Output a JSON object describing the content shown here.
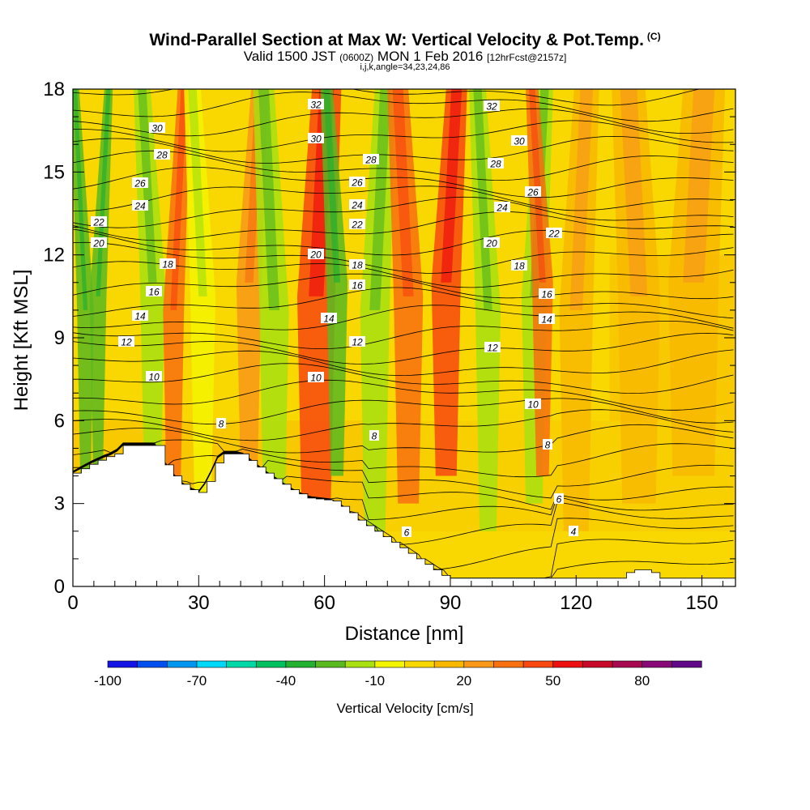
{
  "header": {
    "title": "Wind-Parallel Section at Max W: Vertical Velocity & Pot.Temp.",
    "title_unit": "(C)",
    "valid_prefix": "Valid 1500 JST",
    "valid_zulu": "(0600Z)",
    "valid_date": "MON 1 Feb 2016",
    "forecast": "[12hrFcst@2157z]",
    "indices": "i,j,k,angle=34,23,24,86"
  },
  "chart_data": {
    "type": "heatmap",
    "xlabel": "Distance [nm]",
    "ylabel": "Height [Kft MSL]",
    "xlim": [
      0,
      158
    ],
    "ylim": [
      0,
      18
    ],
    "x_ticks": [
      0,
      30,
      60,
      90,
      120,
      150
    ],
    "x_tick_labels": [
      "0",
      "30",
      "60",
      "90",
      "120",
      "150"
    ],
    "y_ticks": [
      0,
      3,
      6,
      9,
      12,
      15,
      18
    ],
    "y_tick_labels": [
      "0",
      "3",
      "6",
      "9",
      "12",
      "15",
      "18"
    ],
    "colorbar": {
      "title": "Vertical Velocity [cm/s]",
      "tick_values": [
        -100,
        -70,
        -40,
        -10,
        20,
        50,
        80
      ],
      "tick_labels": [
        "-100",
        "-70",
        "-40",
        "-10",
        "20",
        "50",
        "80"
      ],
      "colors": [
        "#1414e6",
        "#0050f0",
        "#0096f0",
        "#00d8f8",
        "#00d8a8",
        "#00c060",
        "#24b030",
        "#5ab820",
        "#a8e010",
        "#f5f500",
        "#f8d800",
        "#f8b800",
        "#f89818",
        "#f87010",
        "#f84810",
        "#ee1010",
        "#c80828",
        "#a80850",
        "#880878",
        "#600888"
      ]
    },
    "potential_temperature_contours": {
      "name": "Pot.Temp.",
      "labels": [
        "4",
        "6",
        "8",
        "10",
        "12",
        "14",
        "16",
        "18",
        "20",
        "22",
        "24",
        "26",
        "28",
        "30",
        "32"
      ]
    },
    "vertical_velocity_bands": [
      {
        "x": 3,
        "w": 2,
        "value": -25
      },
      {
        "x": 6,
        "w": 2,
        "value": -30
      },
      {
        "x": 19,
        "w": 4,
        "value": -20
      },
      {
        "x": 24,
        "w": 3,
        "value": 30
      },
      {
        "x": 31,
        "w": 4,
        "value": -10
      },
      {
        "x": 42,
        "w": 4,
        "value": 20
      },
      {
        "x": 48,
        "w": 5,
        "value": -20
      },
      {
        "x": 58,
        "w": 7,
        "value": 40
      },
      {
        "x": 63,
        "w": 3,
        "value": -30
      },
      {
        "x": 72,
        "w": 5,
        "value": -20
      },
      {
        "x": 80,
        "w": 5,
        "value": 30
      },
      {
        "x": 89,
        "w": 5,
        "value": 40
      },
      {
        "x": 99,
        "w": 4,
        "value": -15
      },
      {
        "x": 110,
        "w": 4,
        "value": -20
      },
      {
        "x": 112,
        "w": 3,
        "value": 30
      },
      {
        "x": 120,
        "w": 6,
        "value": 15
      },
      {
        "x": 135,
        "w": 8,
        "value": 10
      },
      {
        "x": 148,
        "w": 10,
        "value": 10
      }
    ],
    "terrain_profile": {
      "x": [
        0,
        5,
        8,
        10,
        12,
        20,
        21,
        23,
        25,
        28,
        30,
        32,
        35,
        40,
        45,
        52,
        56,
        62,
        65,
        68,
        72,
        76,
        80,
        84,
        88,
        90,
        95,
        120,
        130,
        133,
        137,
        140,
        158
      ],
      "height_kft": [
        4.1,
        4.5,
        4.7,
        4.8,
        5.1,
        5.1,
        4.6,
        4.2,
        3.8,
        3.5,
        3.4,
        3.8,
        4.8,
        4.8,
        4.2,
        3.5,
        3.2,
        3.1,
        2.8,
        2.4,
        2.0,
        1.6,
        1.2,
        0.8,
        0.4,
        0.3,
        0.3,
        0.3,
        0.3,
        0.6,
        0.6,
        0.3,
        0.3
      ]
    }
  }
}
